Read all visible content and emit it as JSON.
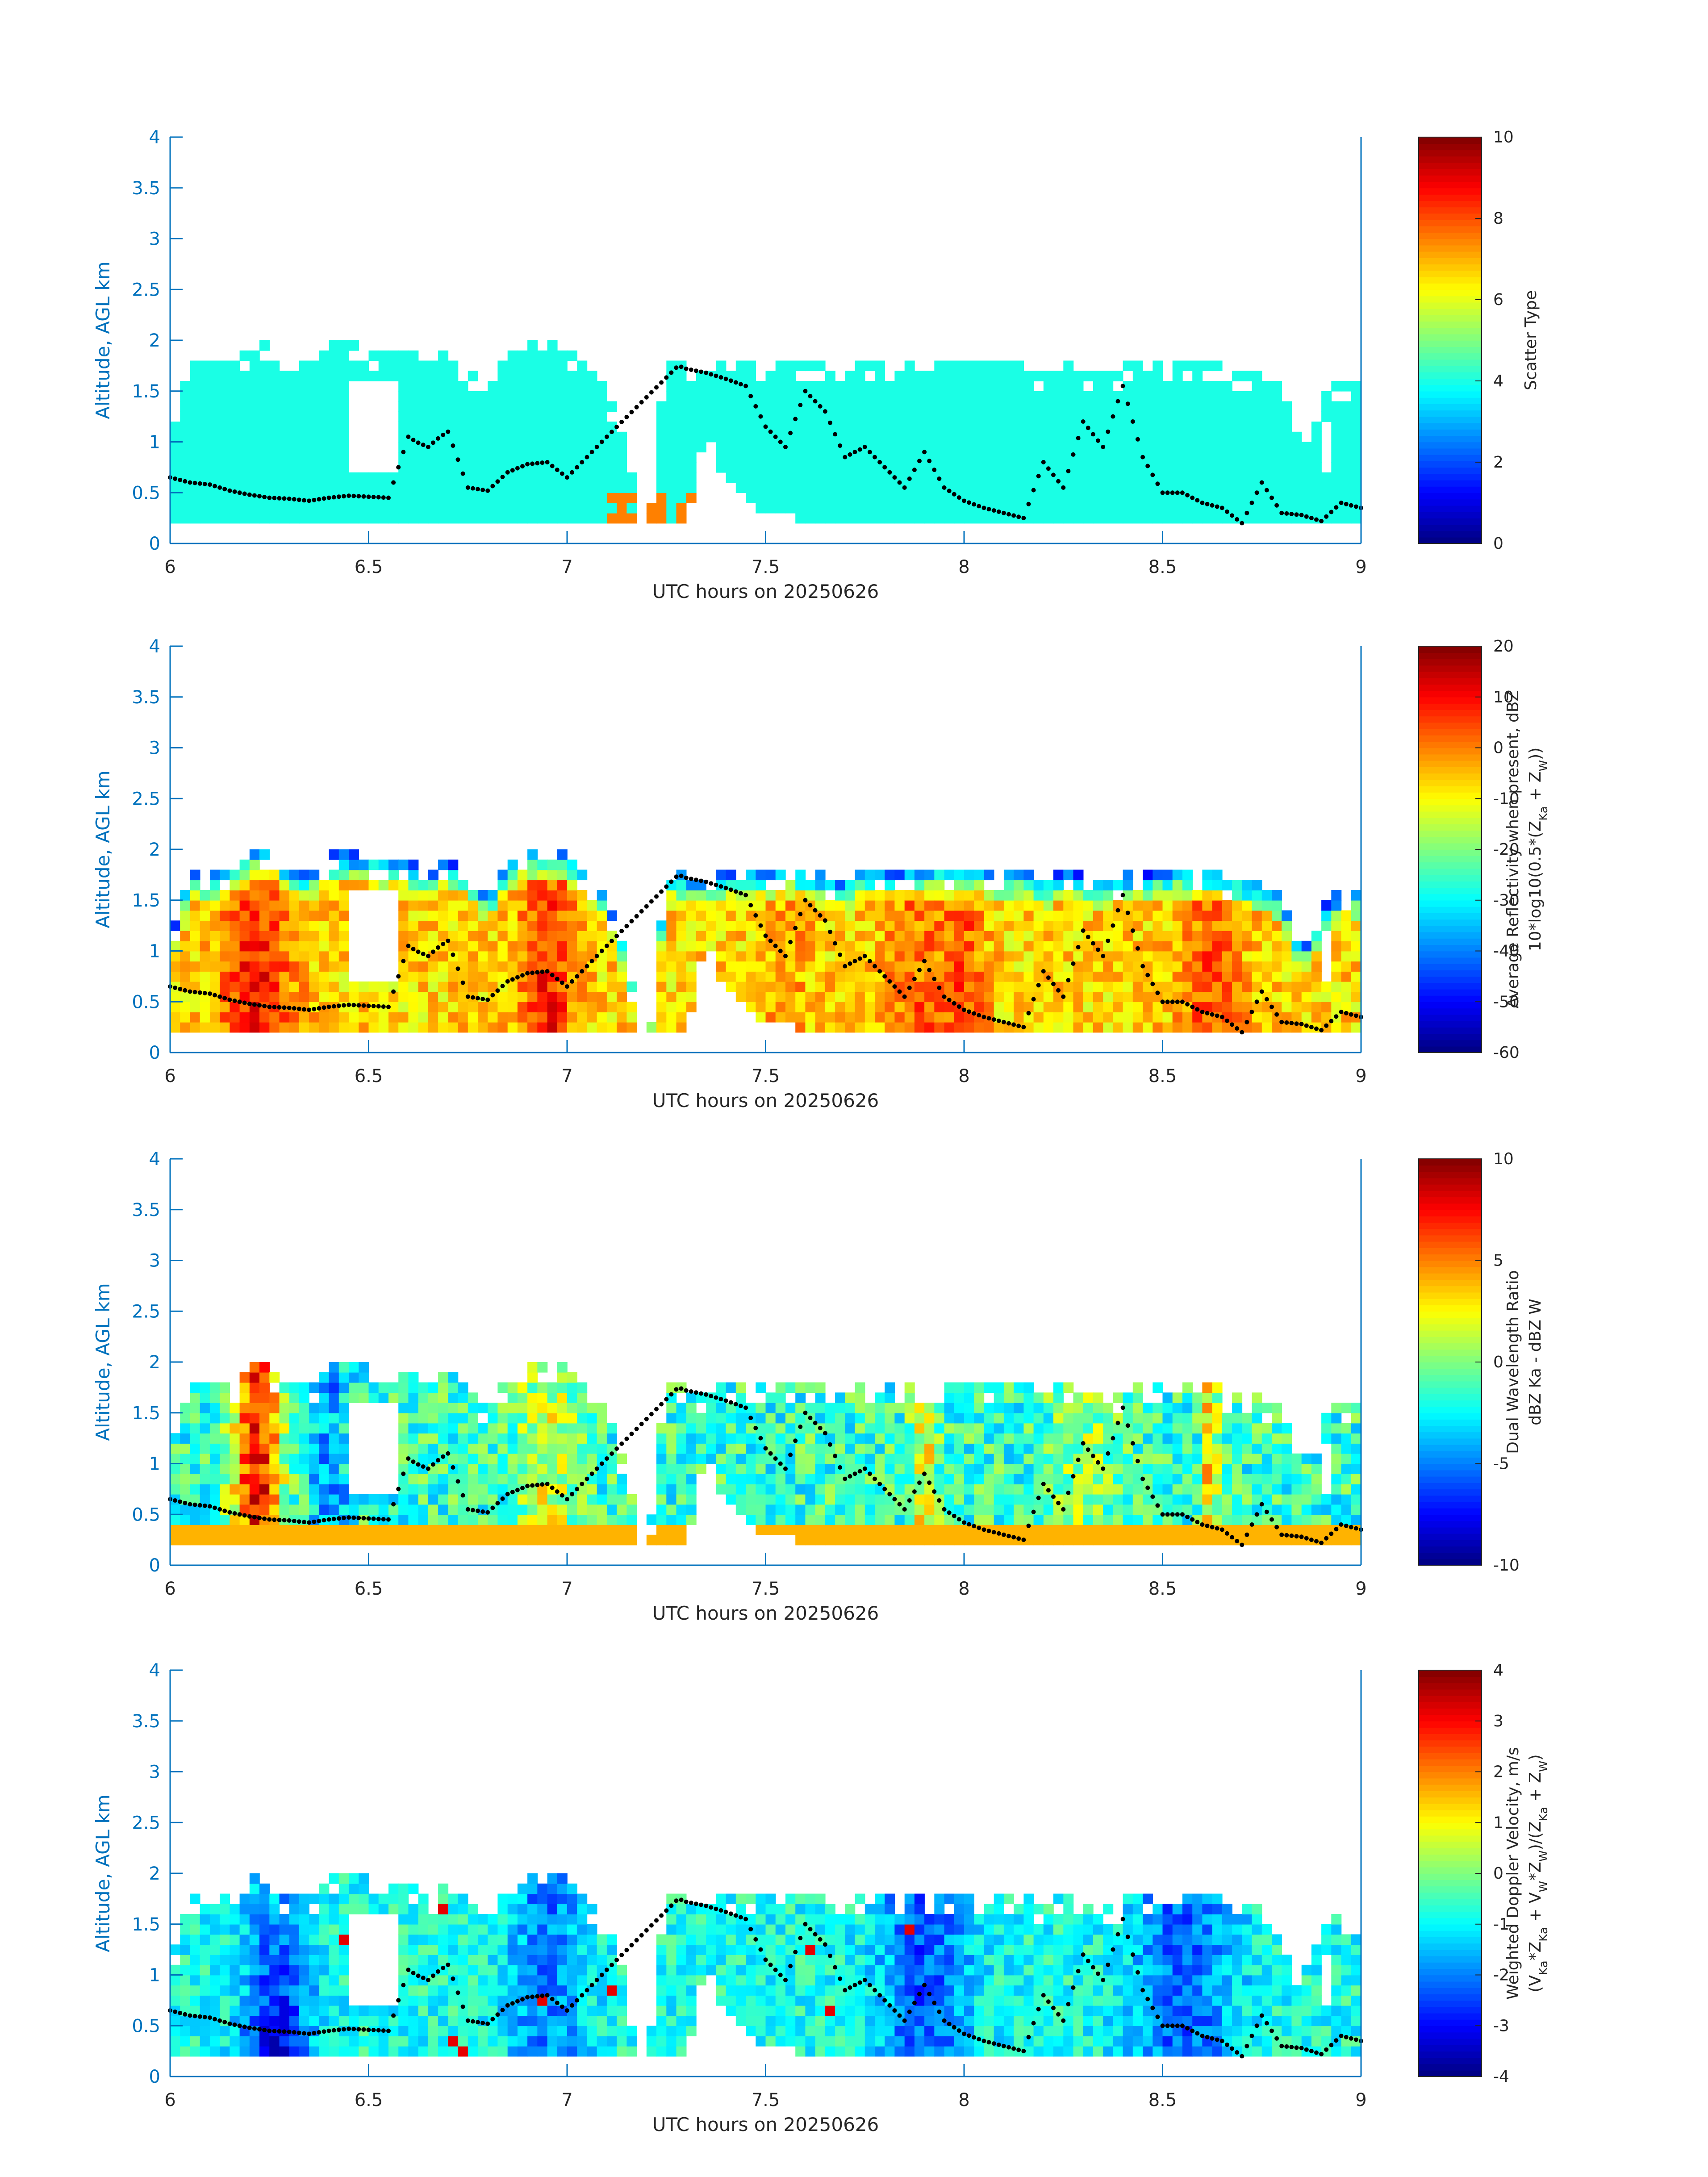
{
  "figure": {
    "date_label": "UTC hours on 20250626"
  },
  "chart_data": [
    {
      "type": "heatmap",
      "xlabel": "UTC hours on 20250626",
      "ylabel": "Altitude, AGL km",
      "xlim": [
        6,
        9
      ],
      "ylim": [
        0,
        4
      ],
      "xticks": [
        "6",
        "6.5",
        "7",
        "7.5",
        "8",
        "8.5",
        "9"
      ],
      "yticks": [
        "0",
        "0.5",
        "1",
        "1.5",
        "2",
        "2.5",
        "3",
        "3.5",
        "4"
      ],
      "colorbar": {
        "label_lines": [
          "Scatter Type"
        ],
        "range": [
          0,
          10
        ],
        "ticks": [
          "0",
          "2",
          "4",
          "6",
          "8",
          "10"
        ]
      },
      "field": "scatter"
    },
    {
      "type": "heatmap",
      "xlabel": "UTC hours on 20250626",
      "ylabel": "Altitude, AGL km",
      "xlim": [
        6,
        9
      ],
      "ylim": [
        0,
        4
      ],
      "xticks": [
        "6",
        "6.5",
        "7",
        "7.5",
        "8",
        "8.5",
        "9"
      ],
      "yticks": [
        "0",
        "0.5",
        "1",
        "1.5",
        "2",
        "2.5",
        "3",
        "3.5",
        "4"
      ],
      "colorbar": {
        "label_lines": [
          "Average Reflectivity when present, dBZ",
          "10*log10(0.5*(Z_Ka + Z_W))"
        ],
        "range": [
          -60,
          20
        ],
        "ticks": [
          "-60",
          "-50",
          "-40",
          "-30",
          "-20",
          "-10",
          "0",
          "10",
          "20"
        ]
      },
      "field": "reflectivity"
    },
    {
      "type": "heatmap",
      "xlabel": "UTC hours on 20250626",
      "ylabel": "Altitude, AGL km",
      "xlim": [
        6,
        9
      ],
      "ylim": [
        0,
        4
      ],
      "xticks": [
        "6",
        "6.5",
        "7",
        "7.5",
        "8",
        "8.5",
        "9"
      ],
      "yticks": [
        "0",
        "0.5",
        "1",
        "1.5",
        "2",
        "2.5",
        "3",
        "3.5",
        "4"
      ],
      "colorbar": {
        "label_lines": [
          "Dual Wavelength Ratio",
          "dBZ Ka - dBZ W"
        ],
        "range": [
          -10,
          10
        ],
        "ticks": [
          "-10",
          "-5",
          "0",
          "5",
          "10"
        ]
      },
      "field": "dwr"
    },
    {
      "type": "heatmap",
      "xlabel": "UTC hours on 20250626",
      "ylabel": "Altitude, AGL km",
      "xlim": [
        6,
        9
      ],
      "ylim": [
        0,
        4
      ],
      "xticks": [
        "6",
        "6.5",
        "7",
        "7.5",
        "8",
        "8.5",
        "9"
      ],
      "yticks": [
        "0",
        "0.5",
        "1",
        "1.5",
        "2",
        "2.5",
        "3",
        "3.5",
        "4"
      ],
      "colorbar": {
        "label_lines": [
          "Weighted Doppler Velocity, m/s",
          "(V_Ka*Z_Ka + V_W*Z_W)/(Z_Ka + Z_W)"
        ],
        "range": [
          -4,
          4
        ],
        "ticks": [
          "-4",
          "-3",
          "-2",
          "-1",
          "0",
          "1",
          "2",
          "3",
          "4"
        ]
      },
      "field": "velocity"
    }
  ],
  "echo_envelope": {
    "x": [
      6.0,
      6.05,
      6.1,
      6.15,
      6.2,
      6.25,
      6.3,
      6.35,
      6.4,
      6.45,
      6.5,
      6.55,
      6.6,
      6.65,
      6.7,
      6.75,
      6.8,
      6.85,
      6.9,
      6.95,
      7.0,
      7.05,
      7.1,
      7.15,
      7.2,
      7.25,
      7.3,
      7.35,
      7.4,
      7.45,
      7.5,
      7.55,
      7.6,
      7.65,
      7.7,
      7.75,
      7.8,
      7.85,
      7.9,
      7.95,
      8.0,
      8.05,
      8.1,
      8.15,
      8.2,
      8.25,
      8.3,
      8.35,
      8.4,
      8.45,
      8.5,
      8.55,
      8.6,
      8.65,
      8.7,
      8.75,
      8.8,
      8.85,
      8.9,
      8.95,
      9.0
    ],
    "top_km": [
      1.1,
      1.8,
      1.75,
      1.8,
      1.95,
      1.95,
      1.8,
      1.75,
      1.95,
      1.95,
      1.95,
      1.9,
      1.9,
      1.75,
      1.9,
      1.8,
      1.55,
      1.85,
      1.95,
      1.95,
      1.95,
      1.8,
      1.5,
      1.0,
      0.0,
      1.8,
      1.75,
      1.7,
      1.8,
      1.8,
      1.8,
      1.8,
      1.8,
      1.75,
      1.7,
      1.8,
      1.8,
      1.75,
      1.8,
      1.8,
      1.8,
      1.8,
      1.75,
      1.85,
      1.7,
      1.8,
      1.75,
      1.7,
      1.75,
      1.75,
      1.8,
      1.8,
      1.75,
      1.75,
      1.7,
      1.65,
      1.55,
      1.0,
      1.4,
      1.6,
      1.6
    ],
    "bottom_km": [
      0.2,
      0.2,
      0.2,
      0.2,
      0.2,
      0.2,
      0.2,
      0.2,
      0.2,
      0.2,
      0.2,
      0.2,
      0.2,
      0.2,
      0.2,
      0.2,
      0.2,
      0.2,
      0.2,
      0.2,
      0.2,
      0.2,
      0.2,
      0.2,
      0.2,
      0.2,
      0.2,
      1.1,
      0.6,
      0.5,
      0.3,
      0.3,
      0.2,
      0.2,
      0.2,
      0.2,
      0.2,
      0.2,
      0.2,
      0.2,
      0.2,
      0.2,
      0.2,
      0.2,
      0.2,
      0.2,
      0.2,
      0.2,
      0.2,
      0.2,
      0.2,
      0.2,
      0.2,
      0.2,
      0.2,
      0.2,
      0.2,
      0.2,
      0.2,
      0.2,
      0.2
    ]
  },
  "trace": {
    "x": [
      6.0,
      6.05,
      6.1,
      6.15,
      6.2,
      6.25,
      6.3,
      6.35,
      6.4,
      6.45,
      6.5,
      6.55,
      6.6,
      6.62,
      6.65,
      6.68,
      6.7,
      6.75,
      6.8,
      6.85,
      6.9,
      6.95,
      7.0,
      7.05,
      7.1,
      7.28,
      7.3,
      7.35,
      7.4,
      7.45,
      7.5,
      7.55,
      7.6,
      7.65,
      7.7,
      7.75,
      7.8,
      7.85,
      7.9,
      7.95,
      8.0,
      8.05,
      8.1,
      8.15,
      8.2,
      8.25,
      8.3,
      8.35,
      8.4,
      8.45,
      8.5,
      8.55,
      8.6,
      8.65,
      8.7,
      8.75,
      8.8,
      8.85,
      8.9,
      8.95,
      9.0
    ],
    "y_km": [
      0.65,
      0.6,
      0.58,
      0.52,
      0.48,
      0.45,
      0.44,
      0.42,
      0.45,
      0.47,
      0.46,
      0.45,
      1.05,
      1.0,
      0.95,
      1.05,
      1.1,
      0.55,
      0.52,
      0.7,
      0.78,
      0.8,
      0.65,
      0.85,
      1.05,
      1.75,
      1.72,
      1.68,
      1.62,
      1.55,
      1.15,
      0.95,
      1.5,
      1.3,
      0.85,
      0.95,
      0.75,
      0.55,
      0.9,
      0.55,
      0.42,
      0.35,
      0.3,
      0.25,
      0.8,
      0.55,
      1.2,
      0.95,
      1.55,
      0.85,
      0.5,
      0.5,
      0.4,
      0.35,
      0.2,
      0.6,
      0.3,
      0.28,
      0.22,
      0.4,
      0.35
    ]
  }
}
